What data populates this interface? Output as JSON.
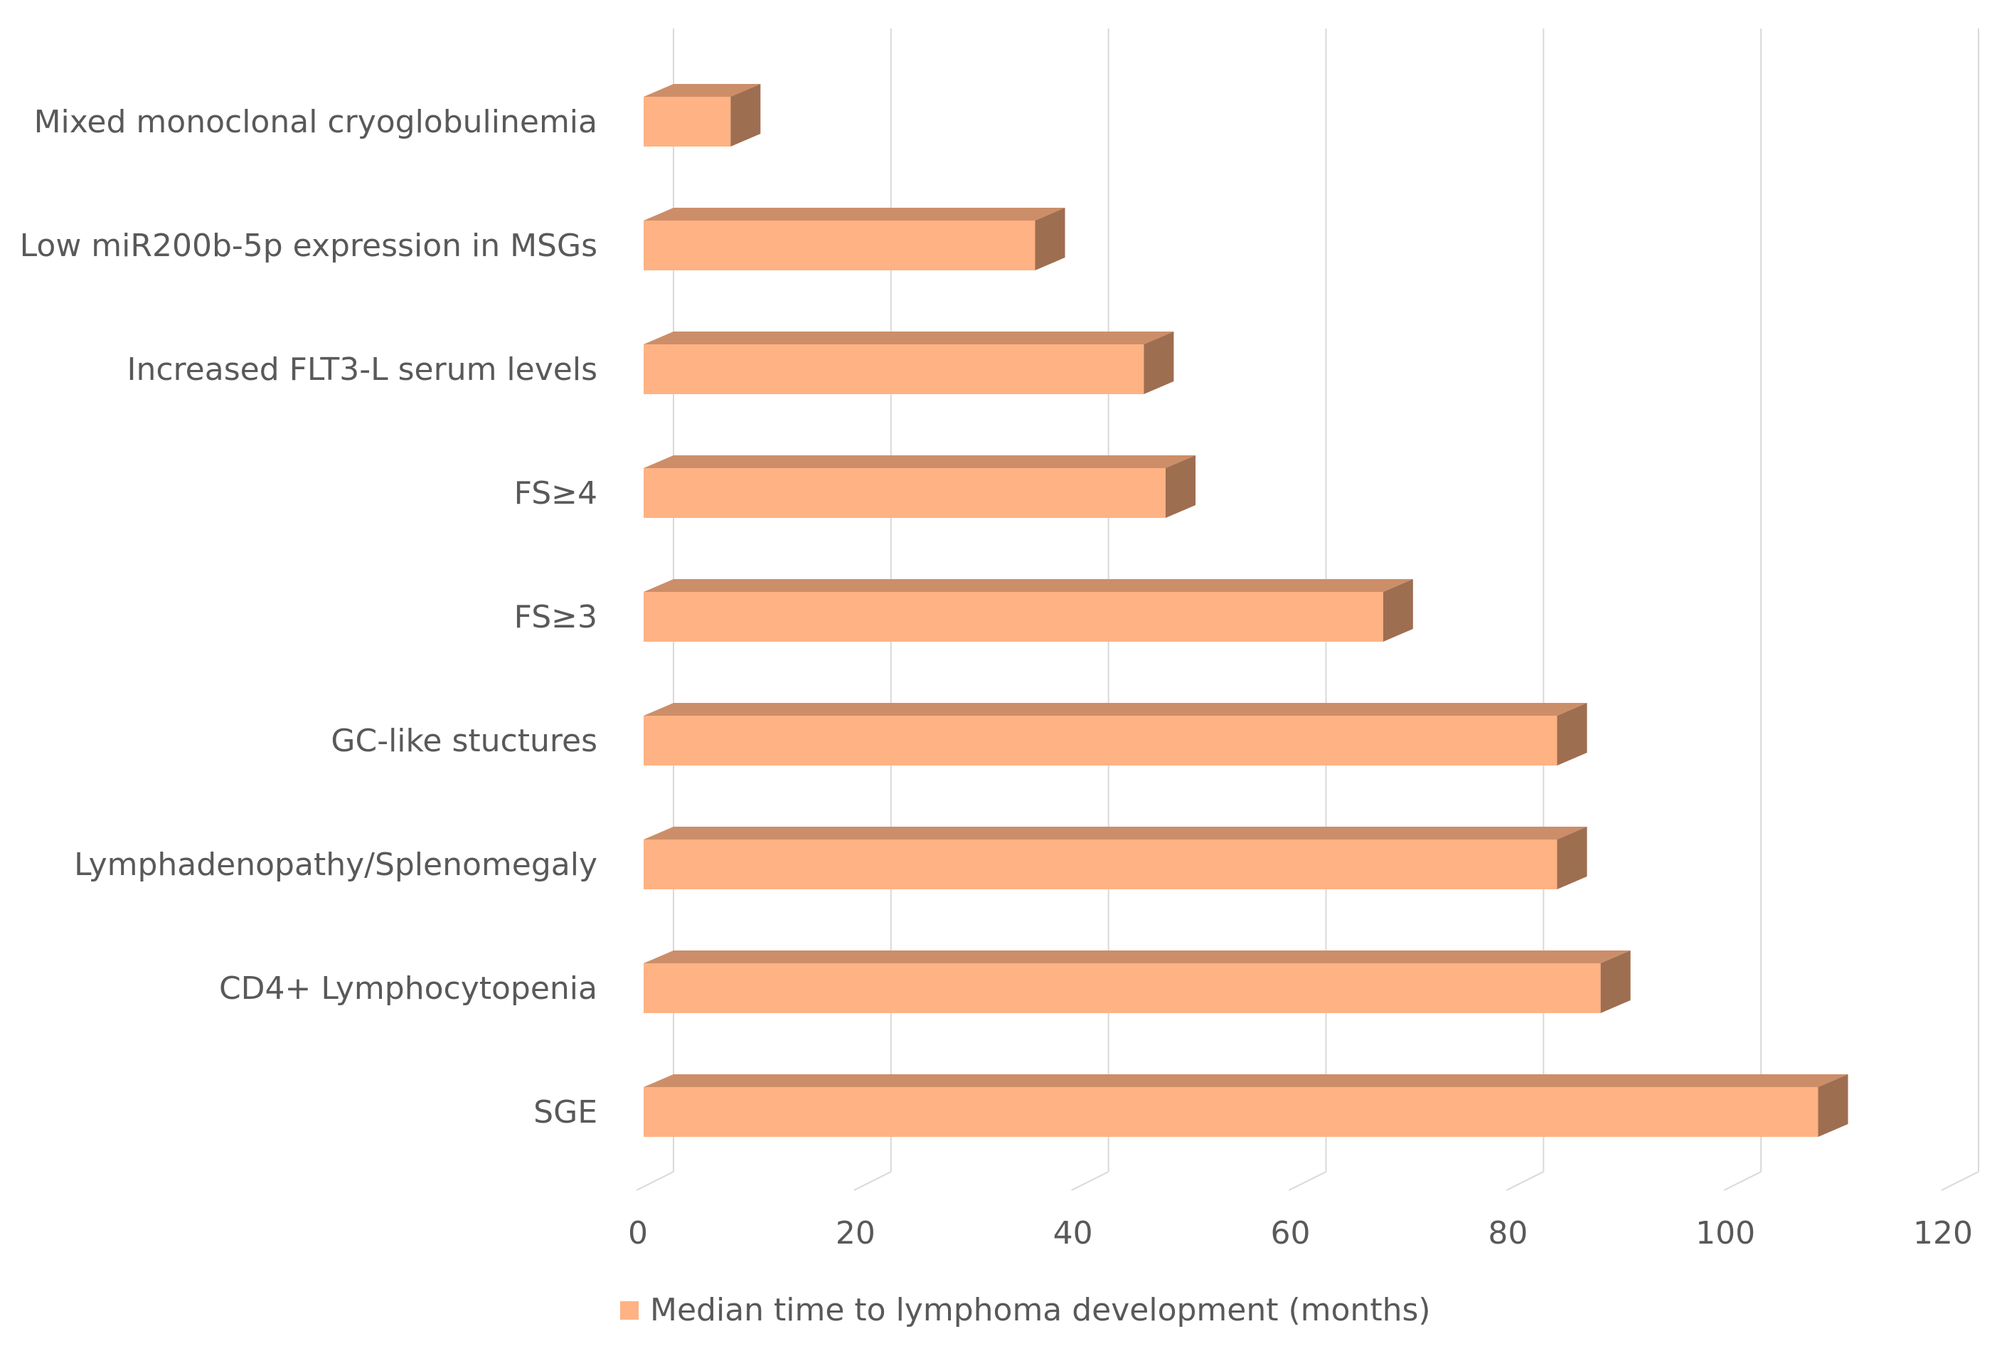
{
  "chart_data": {
    "type": "bar",
    "orientation": "horizontal",
    "style": "3d",
    "categories": [
      "Mixed monoclonal cryoglobulinemia",
      "Low miR200b-5p expression in MSGs",
      "Increased FLT3-L serum levels",
      "FS≥4",
      "FS≥3",
      "GC-like stuctures",
      "Lymphadenopathy/Splenomegaly",
      "CD4+ Lymphocytopenia",
      "SGE"
    ],
    "series": [
      {
        "name": "Median time to lymphoma development (months)",
        "values": [
          8,
          36,
          46,
          48,
          68,
          84,
          84,
          88,
          108
        ],
        "color": "#FFB283"
      }
    ],
    "x_ticks": [
      "0",
      "20",
      "40",
      "60",
      "80",
      "100",
      "120"
    ],
    "xlim": [
      0,
      120
    ],
    "grid": true,
    "legend_position": "bottom"
  }
}
